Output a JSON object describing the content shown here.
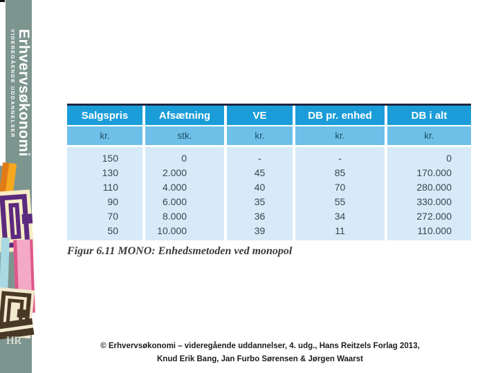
{
  "sidebar": {
    "title": "Erhvervsøkonomi",
    "subtitle": "VIDEREGÅENDE UDDANNELSER",
    "logo_text": "HR"
  },
  "figure": {
    "caption": "Figur 6.11 MONO: Enhedsmetoden ved monopol"
  },
  "table": {
    "columns": [
      {
        "label": "Salgspris",
        "unit": "kr."
      },
      {
        "label": "Afsætning",
        "unit": "stk."
      },
      {
        "label": "VE",
        "unit": "kr."
      },
      {
        "label": "DB pr. enhed",
        "unit": "kr."
      },
      {
        "label": "DB i alt",
        "unit": "kr."
      }
    ],
    "rows": [
      [
        "150",
        "0",
        "-",
        "-",
        "0"
      ],
      [
        "130",
        "2.000",
        "45",
        "85",
        "170.000"
      ],
      [
        "110",
        "4.000",
        "40",
        "70",
        "280.000"
      ],
      [
        "90",
        "6.000",
        "35",
        "55",
        "330.000"
      ],
      [
        "70",
        "8.000",
        "36",
        "34",
        "272.000"
      ],
      [
        "50",
        "10.000",
        "39",
        "11",
        "110.000"
      ]
    ]
  },
  "chart_data": {
    "type": "table",
    "title": "Figur 6.11 MONO: Enhedsmetoden ved monopol",
    "columns": [
      "Salgspris kr.",
      "Afsætning stk.",
      "VE kr.",
      "DB pr. enhed kr.",
      "DB i alt kr."
    ],
    "salgspris": [
      150,
      130,
      110,
      90,
      70,
      50
    ],
    "afsaetning": [
      0,
      2000,
      4000,
      6000,
      8000,
      10000
    ],
    "ve": [
      null,
      45,
      40,
      35,
      36,
      39
    ],
    "db_pr_enhed": [
      null,
      85,
      70,
      55,
      34,
      11
    ],
    "db_i_alt": [
      0,
      170000,
      280000,
      330000,
      272000,
      110000
    ]
  },
  "footer": {
    "line1": "© Erhvervsøkonomi – videregående uddannelser, 4. udg., Hans Reitzels Forlag 2013,",
    "line2": "Knud Erik Bang, Jan Furbo Sørensen & Jørgen Waarst"
  },
  "colors": {
    "sidebar_teal": "#7d958f",
    "header_blue": "#1b9dd9",
    "unit_row_blue": "#6fc0e8",
    "body_light_blue": "#d7eaf7",
    "table_top_line": "#1d2442",
    "art_orange": "#e07b18",
    "art_purple": "#5b2a7e",
    "art_cream": "#f7ecc6",
    "art_pink": "#de578a",
    "art_sky_blue": "#a9d9e2",
    "art_brown": "#4a3826"
  }
}
